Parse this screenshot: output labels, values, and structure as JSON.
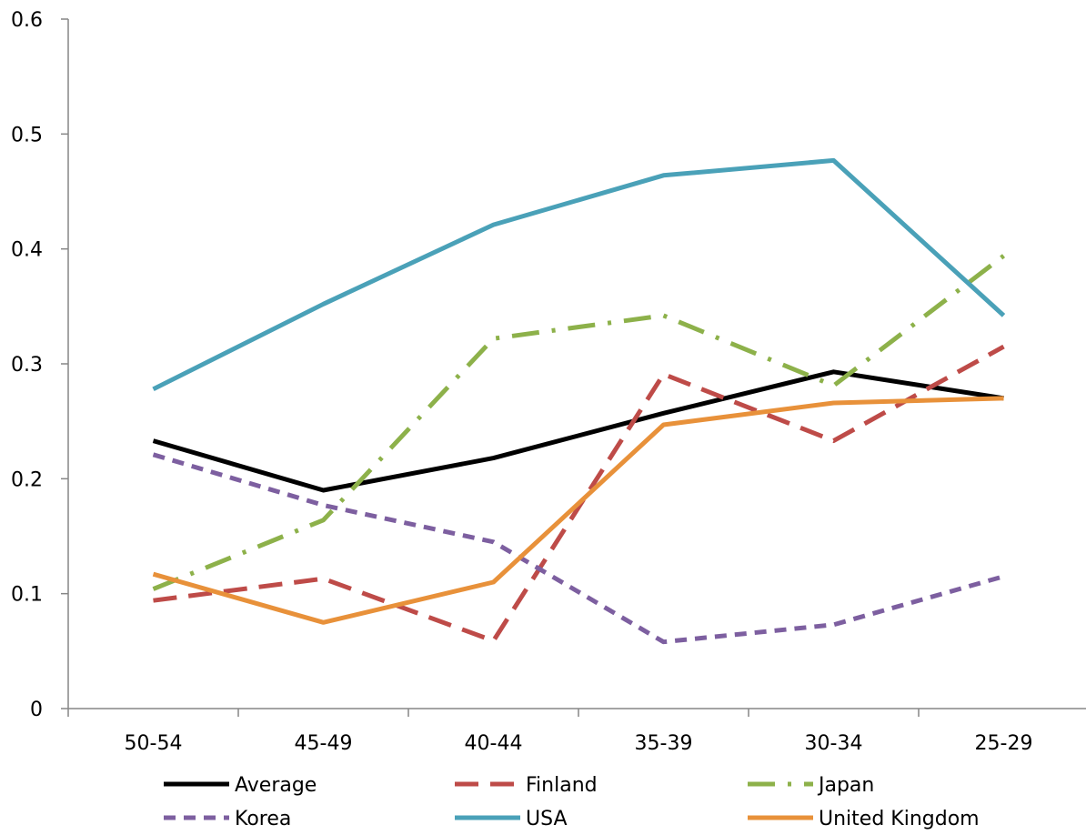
{
  "chart_data": {
    "type": "line",
    "title": "",
    "xlabel": "",
    "ylabel": "",
    "categories": [
      "50-54",
      "45-49",
      "40-44",
      "35-39",
      "30-34",
      "25-29"
    ],
    "ylim": [
      0,
      0.6
    ],
    "yticks": [
      "0",
      "0.1",
      "0.2",
      "0.3",
      "0.4",
      "0.5",
      "0.6"
    ],
    "grid": false,
    "legend_position": "bottom",
    "series": [
      {
        "name": "Average",
        "color": "#000000",
        "style": "solid",
        "values": [
          0.233,
          0.19,
          0.218,
          0.257,
          0.293,
          0.27
        ]
      },
      {
        "name": "Finland",
        "color": "#be4b48",
        "style": "dash",
        "values": [
          0.094,
          0.113,
          0.059,
          0.291,
          0.233,
          0.315
        ]
      },
      {
        "name": "Japan",
        "color": "#8db14a",
        "style": "dashdot",
        "values": [
          0.104,
          0.164,
          0.322,
          0.342,
          0.281,
          0.394
        ]
      },
      {
        "name": "Korea",
        "color": "#7d5fa0",
        "style": "shortdash",
        "values": [
          0.221,
          0.177,
          0.145,
          0.058,
          0.073,
          0.115
        ]
      },
      {
        "name": "USA",
        "color": "#4aa1b8",
        "style": "solid",
        "values": [
          0.278,
          0.352,
          0.421,
          0.464,
          0.477,
          0.342
        ]
      },
      {
        "name": "United Kingdom",
        "color": "#e8913a",
        "style": "solid",
        "values": [
          0.117,
          0.075,
          0.11,
          0.247,
          0.266,
          0.27
        ]
      }
    ]
  }
}
